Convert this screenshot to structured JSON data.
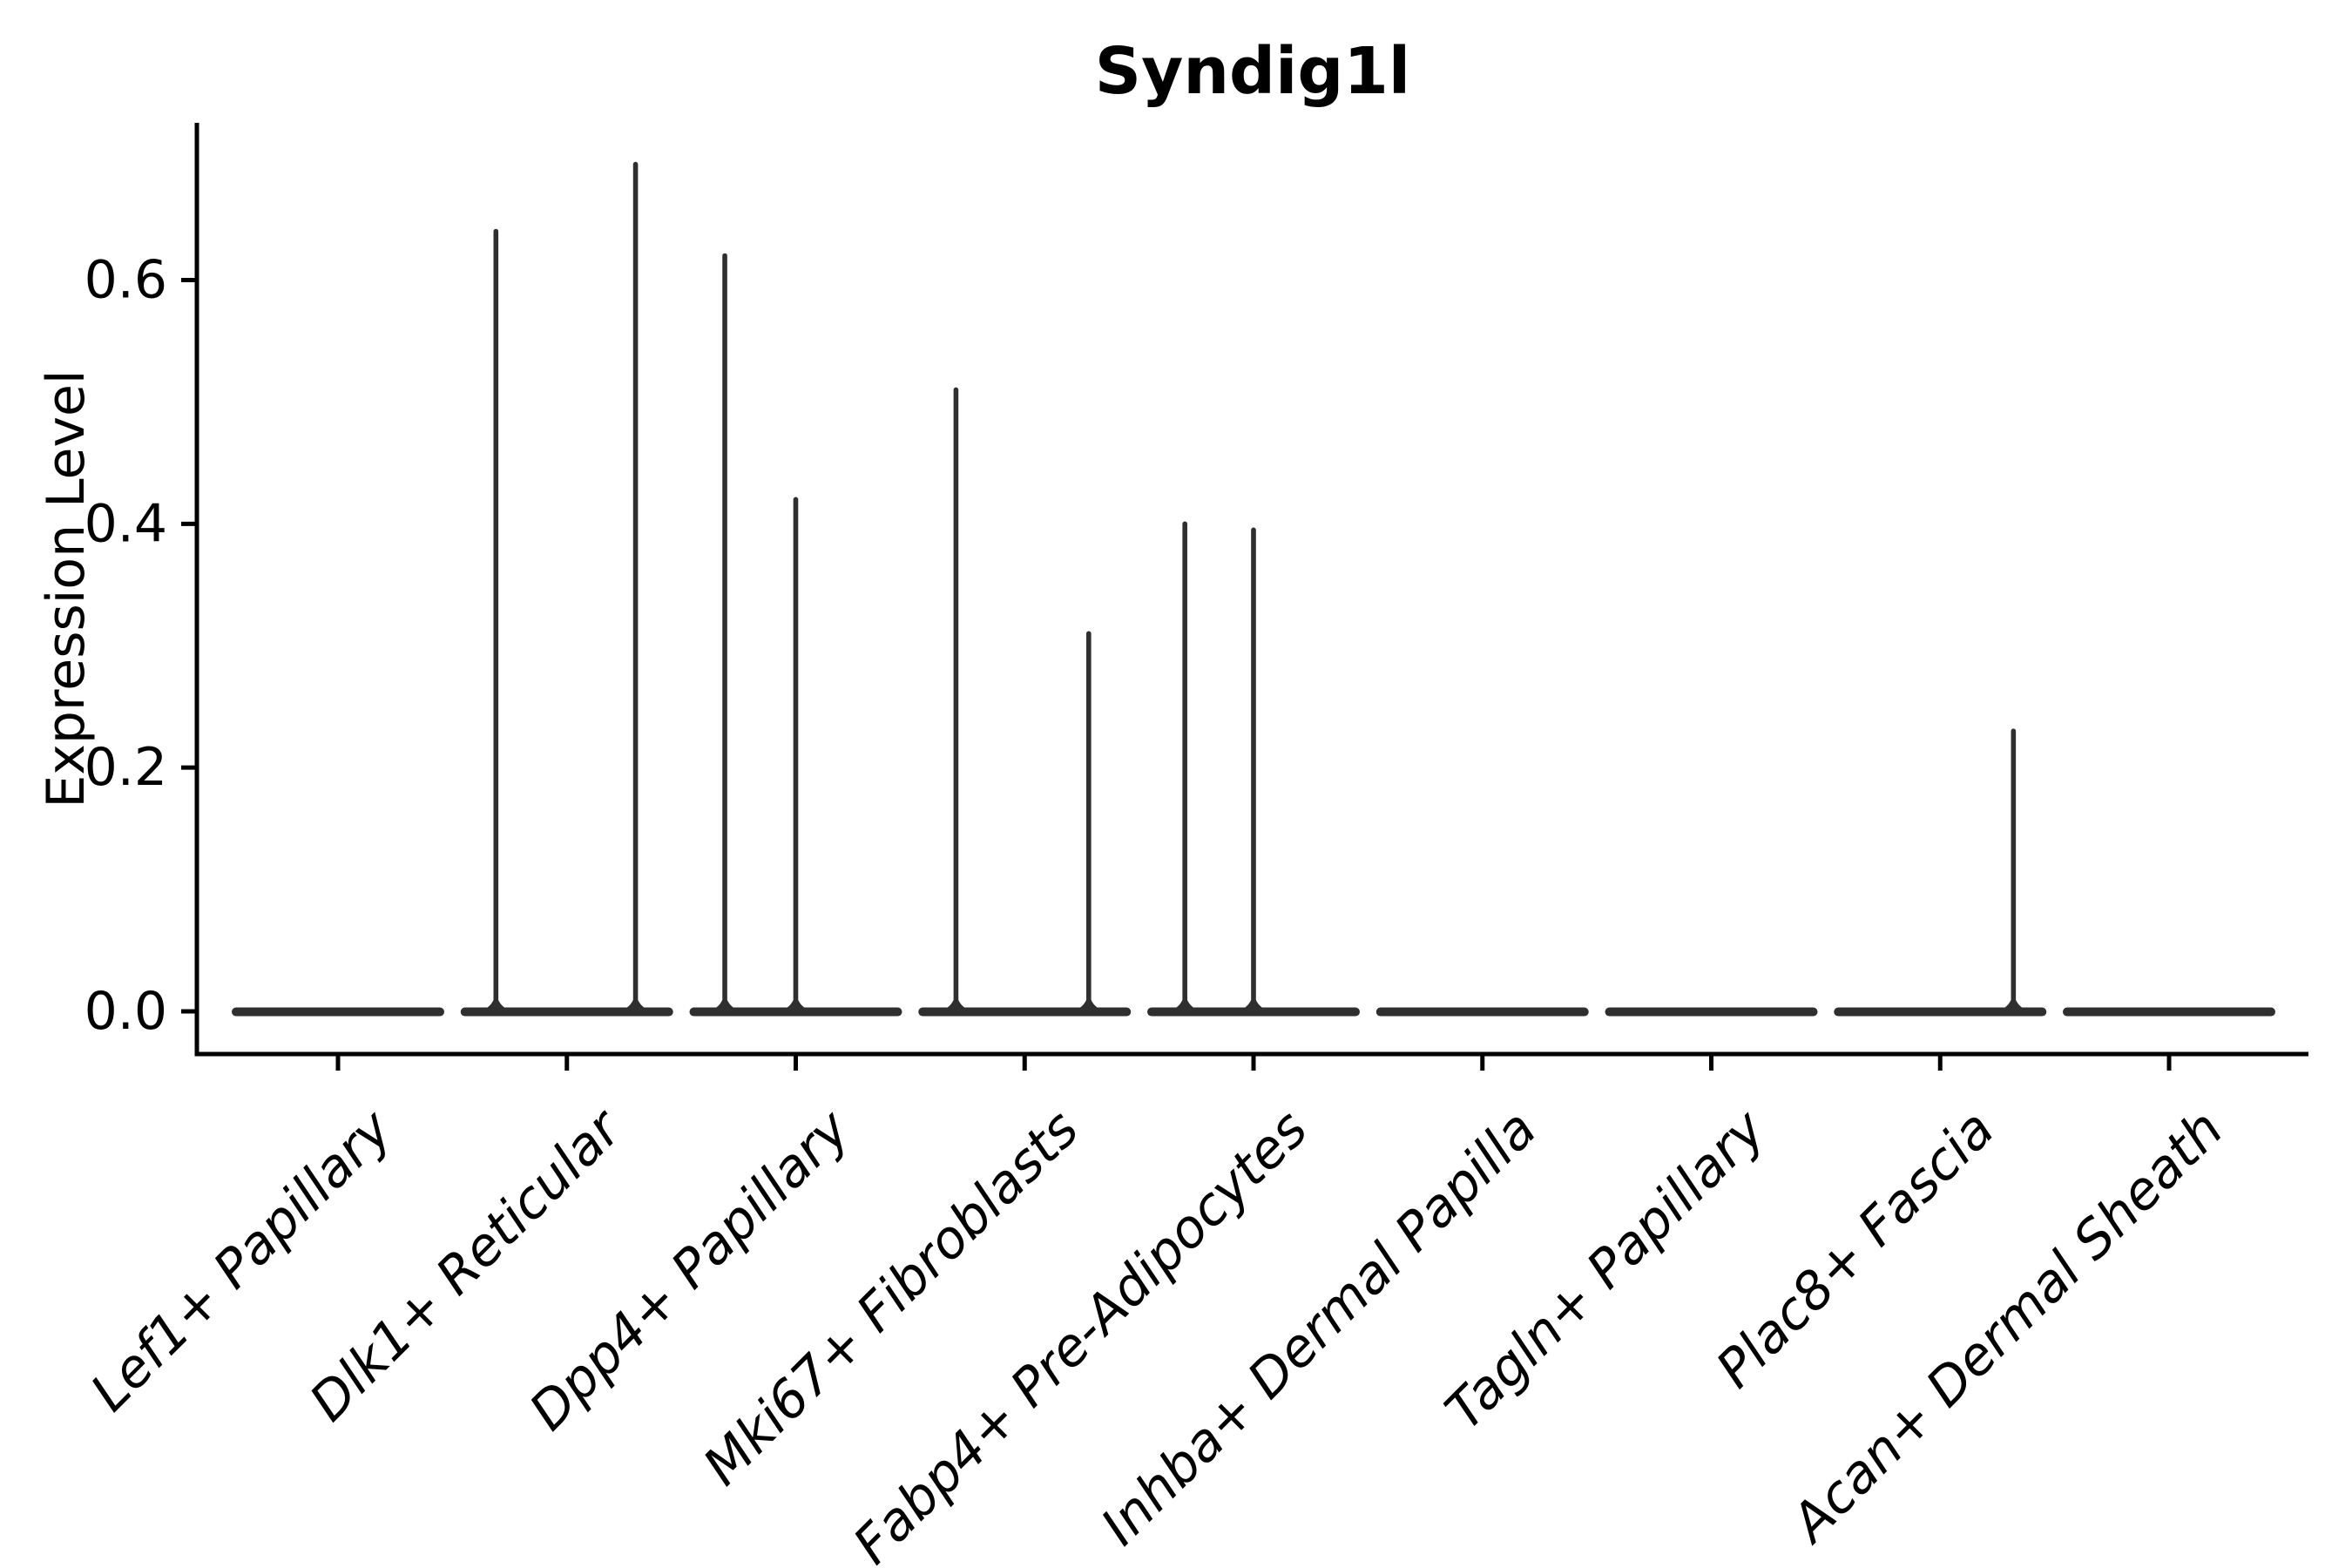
{
  "chart_data": {
    "type": "violin",
    "title": "Syndig1l",
    "xlabel": "",
    "ylabel": "Expression Level",
    "grid": false,
    "legend": null,
    "background_color": "#ffffff",
    "axis_color": "#000000",
    "violin_color": "#2f2f2f",
    "ylim": [
      -0.035,
      0.729
    ],
    "y_ticks": [
      {
        "label": "0.0",
        "value": 0.0
      },
      {
        "label": "0.2",
        "value": 0.2
      },
      {
        "label": "0.4",
        "value": 0.4
      },
      {
        "label": "0.6",
        "value": 0.6
      }
    ],
    "categories": [
      "Lef1+ Papillary",
      "Dlk1+ Reticular",
      "Dpp4+ Papillary",
      "Mki67+ Fibroblasts",
      "Fabp4+ Pre-Adipocytes",
      "Inhba+ Dermal Papilla",
      "Tagln+ Papillary",
      "Plac8+ Fascia",
      "Acan+ Dermal Sheath"
    ],
    "violins": [
      {
        "category": "Lef1+ Papillary",
        "base_value": 0.0,
        "spikes": []
      },
      {
        "category": "Dlk1+ Reticular",
        "base_value": 0.0,
        "spikes": [
          {
            "offset": -0.31,
            "peak": 0.64
          },
          {
            "offset": 0.3,
            "peak": 0.695
          }
        ]
      },
      {
        "category": "Dpp4+ Papillary",
        "base_value": 0.0,
        "spikes": [
          {
            "offset": -0.31,
            "peak": 0.62
          },
          {
            "offset": 0.0,
            "peak": 0.42
          }
        ]
      },
      {
        "category": "Mki67+ Fibroblasts",
        "base_value": 0.0,
        "spikes": [
          {
            "offset": -0.3,
            "peak": 0.51
          },
          {
            "offset": 0.28,
            "peak": 0.31
          }
        ]
      },
      {
        "category": "Fabp4+ Pre-Adipocytes",
        "base_value": 0.0,
        "spikes": [
          {
            "offset": -0.3,
            "peak": 0.4
          },
          {
            "offset": 0.0,
            "peak": 0.395
          }
        ]
      },
      {
        "category": "Inhba+ Dermal Papilla",
        "base_value": 0.0,
        "spikes": []
      },
      {
        "category": "Tagln+ Papillary",
        "base_value": 0.0,
        "spikes": []
      },
      {
        "category": "Plac8+ Fascia",
        "base_value": 0.0,
        "spikes": [
          {
            "offset": 0.32,
            "peak": 0.23
          }
        ]
      },
      {
        "category": "Acan+ Dermal Sheath",
        "base_value": 0.0,
        "spikes": []
      }
    ]
  }
}
